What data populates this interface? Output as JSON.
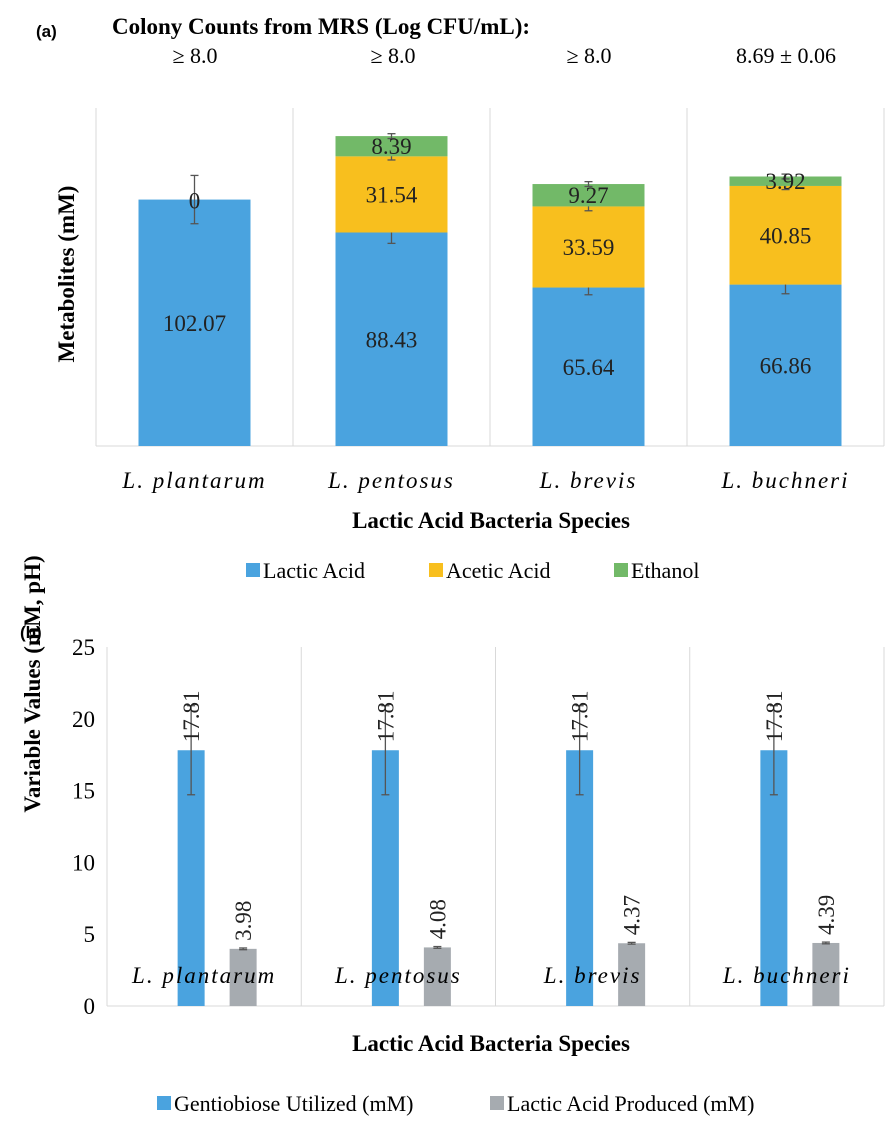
{
  "panel_a": {
    "panel_label": "(a)",
    "colony_title": "Colony Counts from MRS (Log CFU/mL):",
    "colony_counts": [
      "≥ 8.0",
      "≥ 8.0",
      "≥ 8.0",
      "8.69 ± 0.06"
    ]
  },
  "panel_b": {
    "panel_label": "(b)"
  },
  "chart_data": [
    {
      "type": "bar",
      "stacked": true,
      "title": "",
      "xlabel": "Lactic Acid Bacteria Species",
      "ylabel": "Metabolites (mM)",
      "categories": [
        "L. plantarum",
        "L. pentosus",
        "L. brevis",
        "L. buchneri"
      ],
      "series": [
        {
          "name": "Lactic Acid",
          "color": "#4aa3df",
          "values": [
            102.07,
            88.43,
            65.64,
            66.86
          ],
          "errors": [
            10,
            4.5,
            3.0,
            3.8
          ]
        },
        {
          "name": "Acetic Acid",
          "color": "#f8bf1e",
          "values": [
            0,
            31.54,
            33.59,
            40.85
          ],
          "errors": [
            0,
            1.5,
            1.8,
            1.5
          ]
        },
        {
          "name": "Ethanol",
          "color": "#72b968",
          "values": [
            0,
            8.39,
            9.27,
            3.92
          ],
          "errors": [
            0,
            1.0,
            1.0,
            1.0
          ]
        }
      ],
      "data_labels": [
        [
          "102.07",
          "88.43",
          "65.64",
          "66.86"
        ],
        [
          "0",
          "31.54",
          "33.59",
          "40.85"
        ],
        [
          "",
          "8.39",
          "9.27",
          "3.92"
        ]
      ],
      "ylim": [
        0,
        140
      ],
      "grid": false,
      "legend_position": "bottom"
    },
    {
      "type": "bar",
      "title": "",
      "xlabel": "Lactic Acid Bacteria Species",
      "ylabel": "Variable Values (mM, pH)",
      "categories": [
        "L. plantarum",
        "L. pentosus",
        "L. brevis",
        "L. buchneri"
      ],
      "series": [
        {
          "name": "Gentiobiose Utilized (mM)",
          "color": "#4aa3df",
          "values": [
            17.81,
            17.81,
            17.81,
            17.81
          ],
          "errors": [
            3.1,
            3.1,
            3.1,
            3.1
          ]
        },
        {
          "name": "Lactic Acid Produced (mM)",
          "color": "#a6abb0",
          "values": [
            3.98,
            4.08,
            4.37,
            4.39
          ],
          "errors": [
            0.06,
            0.06,
            0.06,
            0.06
          ]
        }
      ],
      "ylim": [
        0,
        25
      ],
      "yticks": [
        "0",
        "5",
        "10",
        "15",
        "20",
        "25"
      ],
      "grid": false,
      "legend_position": "bottom"
    }
  ]
}
